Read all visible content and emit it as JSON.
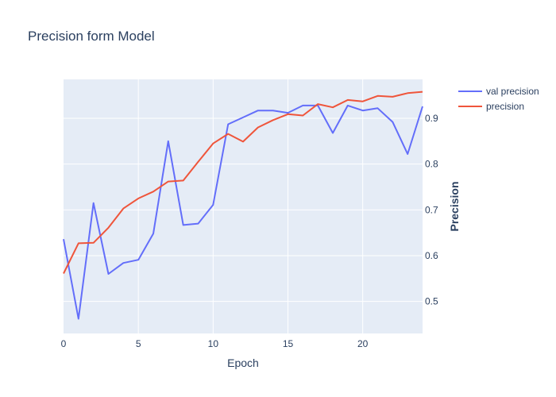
{
  "chart_data": {
    "type": "line",
    "title": "Precision form Model",
    "xlabel": "Epoch",
    "ylabel": "Precision",
    "xlim": [
      0,
      24
    ],
    "ylim": [
      0.43,
      0.985
    ],
    "x_ticks": [
      0,
      5,
      10,
      15,
      20
    ],
    "y_ticks": [
      0.5,
      0.6,
      0.7,
      0.8,
      0.9
    ],
    "y_tick_labels": [
      "0.5",
      "0.6",
      "0.7",
      "0.8",
      "0.9"
    ],
    "y_axis_side": "right",
    "grid": true,
    "legend_position": "top-right",
    "x": [
      0,
      1,
      2,
      3,
      4,
      5,
      6,
      7,
      8,
      9,
      10,
      11,
      12,
      13,
      14,
      15,
      16,
      17,
      18,
      19,
      20,
      21,
      22,
      23,
      24
    ],
    "series": [
      {
        "name": "val precision",
        "color": "#636efa",
        "values": [
          0.636,
          0.462,
          0.715,
          0.56,
          0.584,
          0.591,
          0.648,
          0.85,
          0.667,
          0.67,
          0.711,
          0.887,
          0.902,
          0.917,
          0.917,
          0.912,
          0.928,
          0.928,
          0.868,
          0.928,
          0.917,
          0.922,
          0.892,
          0.822,
          0.926
        ]
      },
      {
        "name": "precision",
        "color": "#ef553b",
        "values": [
          0.561,
          0.627,
          0.628,
          0.661,
          0.703,
          0.725,
          0.74,
          0.762,
          0.764,
          0.805,
          0.845,
          0.866,
          0.849,
          0.88,
          0.896,
          0.909,
          0.906,
          0.931,
          0.924,
          0.94,
          0.937,
          0.949,
          0.947,
          0.955,
          0.958
        ]
      }
    ]
  }
}
